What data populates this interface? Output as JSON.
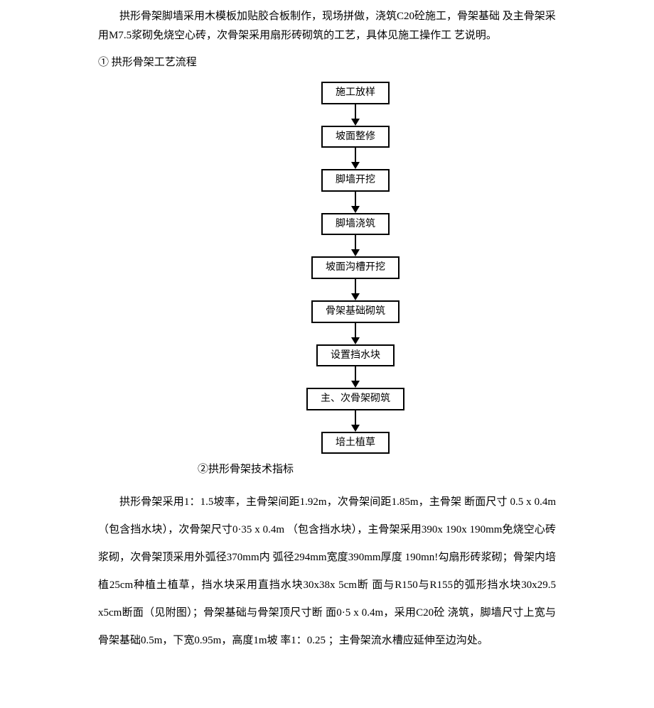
{
  "intro_para": "拱形骨架脚墙采用木模板加贴胶合板制作，现场拼做，浇筑C20砼施工，骨架基础 及主骨架采用M7.5浆砌免烧空心砖，次骨架采用扇形砖砌筑的工艺，具体见施工操作工 艺说明。",
  "heading_1": "① 拱形骨架工艺流程",
  "flowchart": {
    "nodes": [
      "施工放样",
      "坡面整修",
      "脚墙开挖",
      "脚墙浇筑",
      "坡面沟槽开挖",
      "骨架基础砌筑",
      "设置挡水块",
      "主、次骨架砌筑",
      "培土植草"
    ],
    "node_border_color": "#000000",
    "node_bg_color": "#ffffff",
    "arrow_color": "#000000"
  },
  "heading_2": "②拱形骨架技术指标",
  "spec_para": "拱形骨架采用1：1.5坡率，主骨架间距1.92m，次骨架间距1.85m，主骨架 断面尺寸 0.5 x 0.4m （包含挡水块），次骨架尺寸0·35 x 0.4m （包含挡水块），主骨架采用390x 190x 190mm免烧空心砖浆砌，次骨架顶采用外弧径370mm内 弧径294mm宽度390mm厚度 190mn!勾扇形砖浆砌；骨架内培植25cm种植土植草，挡水块采用直挡水块30x38x 5cm断  面与R150与R155的弧形挡水块30x29.5 x5cm断面（见附图）；骨架基础与骨架顶尺寸断 面0·5 x 0.4m，采用C20砼 浇筑，脚墙尺寸上宽与骨架基础0.5m，下宽0.95m，高度1m坡 率1：0.25 ；主骨架流水槽应延伸至边沟处。"
}
